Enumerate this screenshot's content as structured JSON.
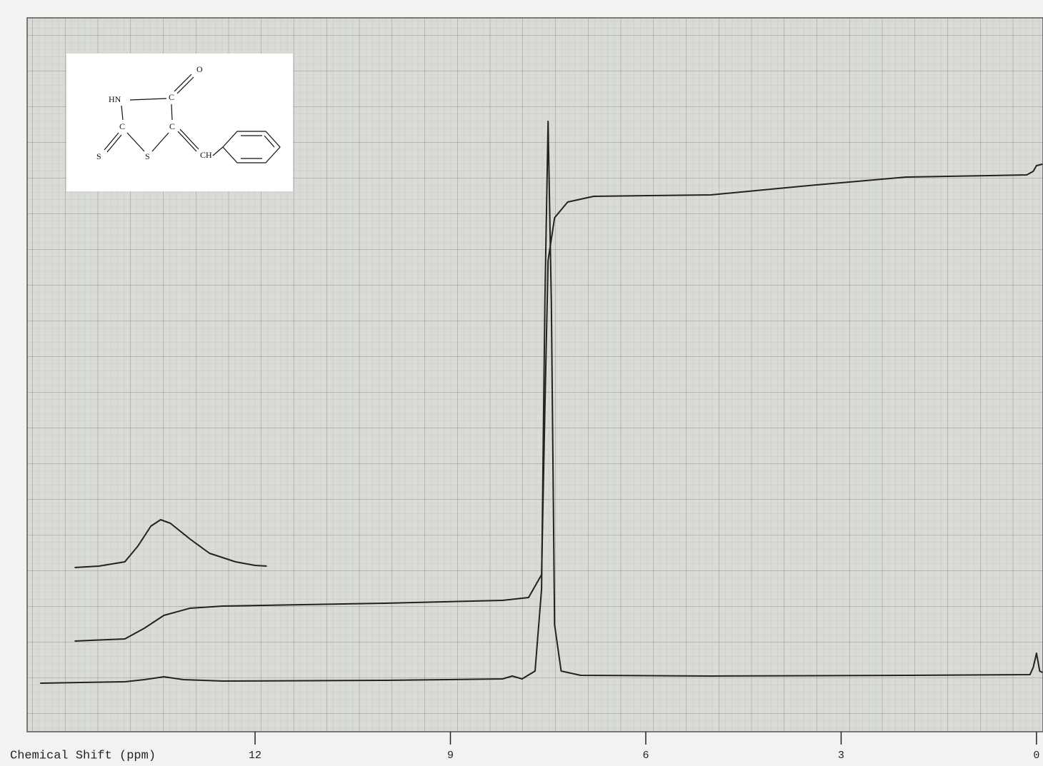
{
  "chart_data": {
    "type": "line",
    "x_label": "Chemical Shift (ppm)",
    "xlim": [
      15.5,
      -0.1
    ],
    "xticks": [
      12,
      9,
      6,
      3,
      0
    ],
    "ylim": [
      0,
      100
    ],
    "series": [
      {
        "color": "#222222",
        "x": [
          15.3,
          14,
          13.7,
          13.4,
          13.1,
          12.5,
          10,
          8.2,
          8.05,
          7.9,
          7.7,
          7.6,
          7.55,
          7.5,
          7.45,
          7.4,
          7.3,
          7.0,
          5,
          2,
          0.1,
          0.05,
          0.0,
          -0.05,
          -0.09
        ],
        "values": [
          6.8,
          7.0,
          7.3,
          7.7,
          7.3,
          7.1,
          7.2,
          7.4,
          7.8,
          7.4,
          8.5,
          20,
          60,
          85.5,
          60,
          15,
          8.5,
          7.9,
          7.8,
          7.9,
          8,
          9,
          11,
          8.5,
          8.3
        ]
      },
      {
        "color": "#222222",
        "x": [
          14.77,
          14,
          13.7,
          13.4,
          13.0,
          12.5,
          10,
          8.2,
          7.8,
          7.6,
          7.55,
          7.5,
          7.4,
          7.2,
          6.8,
          5,
          3.5,
          2,
          0.15,
          0.05,
          0,
          -0.09
        ],
        "values": [
          12.7,
          13,
          14.5,
          16.3,
          17.3,
          17.6,
          18,
          18.4,
          18.8,
          22,
          45,
          66,
          72,
          74.2,
          75,
          75.2,
          76.5,
          77.7,
          78,
          78.5,
          79.3,
          79.5
        ]
      },
      {
        "color": "#222222",
        "x": [
          14.77,
          14.4,
          14.0,
          13.8,
          13.6,
          13.45,
          13.3,
          13.0,
          12.7,
          12.3,
          12.0,
          11.82
        ],
        "values": [
          23,
          23.2,
          23.8,
          26,
          28.8,
          29.7,
          29.2,
          27,
          25,
          23.8,
          23.3,
          23.2
        ]
      }
    ]
  },
  "structure": {
    "atoms": [
      "O",
      "HN",
      "C",
      "C",
      "C",
      "S",
      "S",
      "CH"
    ]
  }
}
